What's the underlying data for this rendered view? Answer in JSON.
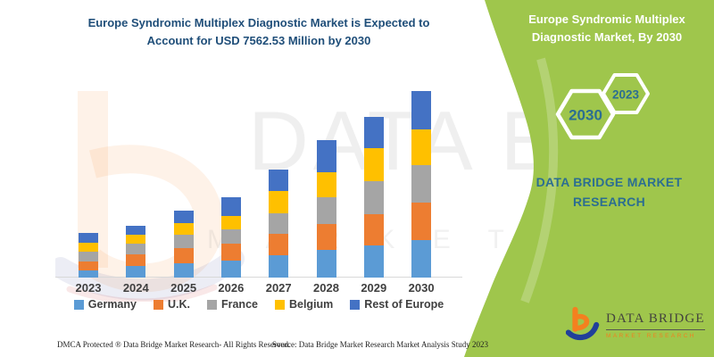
{
  "chart": {
    "title_line1": "Europe Syndromic Multiplex Diagnostic Market is Expected to",
    "title_line2": "Account for USD 7562.53 Million by 2030",
    "title_color": "#1F4E79"
  },
  "chart_data": {
    "type": "bar",
    "stacked": true,
    "title": "Europe Syndromic Multiplex Diagnostic Market is Expected to Account for USD 7562.53 Million by 2030",
    "unit": "USD Million",
    "categories": [
      "2023",
      "2024",
      "2025",
      "2026",
      "2027",
      "2028",
      "2029",
      "2030"
    ],
    "series": [
      {
        "name": "Germany",
        "color": "#5B9BD5",
        "values": [
          300,
          460,
          570,
          700,
          910,
          1130,
          1300,
          1520
        ]
      },
      {
        "name": "U.K.",
        "color": "#ED7D31",
        "values": [
          365,
          485,
          610,
          670,
          850,
          1030,
          1275,
          1515
        ]
      },
      {
        "name": "France",
        "color": "#A5A5A5",
        "values": [
          390,
          425,
          545,
          580,
          850,
          1090,
          1335,
          1517
        ]
      },
      {
        "name": "Belgium",
        "color": "#FFC000",
        "values": [
          365,
          365,
          485,
          560,
          910,
          1030,
          1335,
          1455
        ]
      },
      {
        "name": "Rest of Europe",
        "color": "#4472C4",
        "values": [
          400,
          365,
          520,
          730,
          850,
          1280,
          1275,
          1555.53
        ]
      }
    ],
    "totals": [
      1820,
      2100,
      2730,
      3240,
      4370,
      5560,
      6520,
      7562.53
    ],
    "highlight_total_2030": 7562.53,
    "y_axis_visible": false,
    "gridlines": false,
    "legend_position": "bottom"
  },
  "watermark": {
    "big_text": "DATA BRIDGE",
    "sub_text": "M A R K E T  R E S E A R C H"
  },
  "side_panel": {
    "bg_color": "#9FC64C",
    "heading_line1": "Europe Syndromic Multiplex",
    "heading_line2": "Diagnostic Market, By 2030",
    "hexagons": [
      {
        "label": "2030"
      },
      {
        "label": "2023"
      }
    ],
    "brand_line1": "DATA BRIDGE MARKET",
    "brand_line2": "RESEARCH",
    "brand_color": "#2C6E91",
    "logo": {
      "name_line": "DATA BRIDGE",
      "sub_line": "MARKET RESEARCH"
    }
  },
  "footer": {
    "left": "DMCA Protected ® Data Bridge Market Research-  All Rights Reserved.",
    "right": "Source: Data Bridge Market Research  Market Analysis Study 2023"
  }
}
